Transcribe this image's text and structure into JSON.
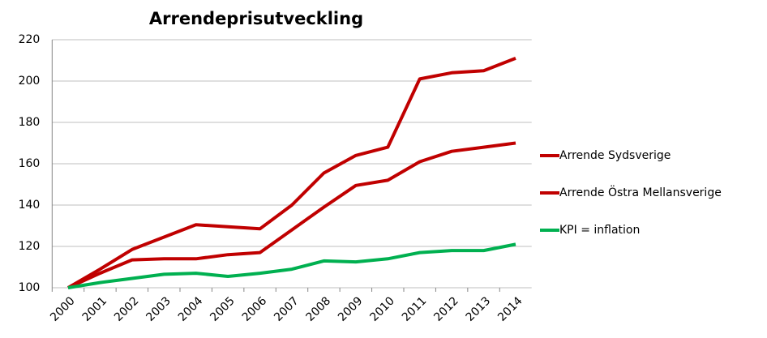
{
  "chart_data": {
    "type": "line",
    "title": "Arrendeprisutveckling",
    "categories": [
      "2000",
      "2001",
      "2002",
      "2003",
      "2004",
      "2005",
      "2006",
      "2007",
      "2008",
      "2009",
      "2010",
      "2011",
      "2012",
      "2013",
      "2014"
    ],
    "series": [
      {
        "name": "Arrende Sydsverige",
        "color": "#c00000",
        "values": [
          100,
          109,
          118.5,
          124.5,
          130.5,
          129.5,
          128.5,
          140,
          155.5,
          164,
          168,
          201,
          204,
          205,
          211
        ]
      },
      {
        "name": "Arrende Östra Mellansverige",
        "color": "#c00000",
        "values": [
          100,
          107,
          113.5,
          114,
          114,
          116,
          117,
          128,
          139,
          149.5,
          152,
          161,
          166,
          168,
          170
        ]
      },
      {
        "name": "KPI = inflation",
        "color": "#00b050",
        "values": [
          100,
          102.5,
          104.5,
          106.5,
          107,
          105.5,
          107,
          109,
          113,
          112.5,
          114,
          117,
          118,
          118,
          121
        ]
      }
    ],
    "ylim": [
      100,
      220
    ],
    "yticks": [
      100,
      120,
      140,
      160,
      180,
      200,
      220
    ],
    "grid": true,
    "legend": "right"
  }
}
